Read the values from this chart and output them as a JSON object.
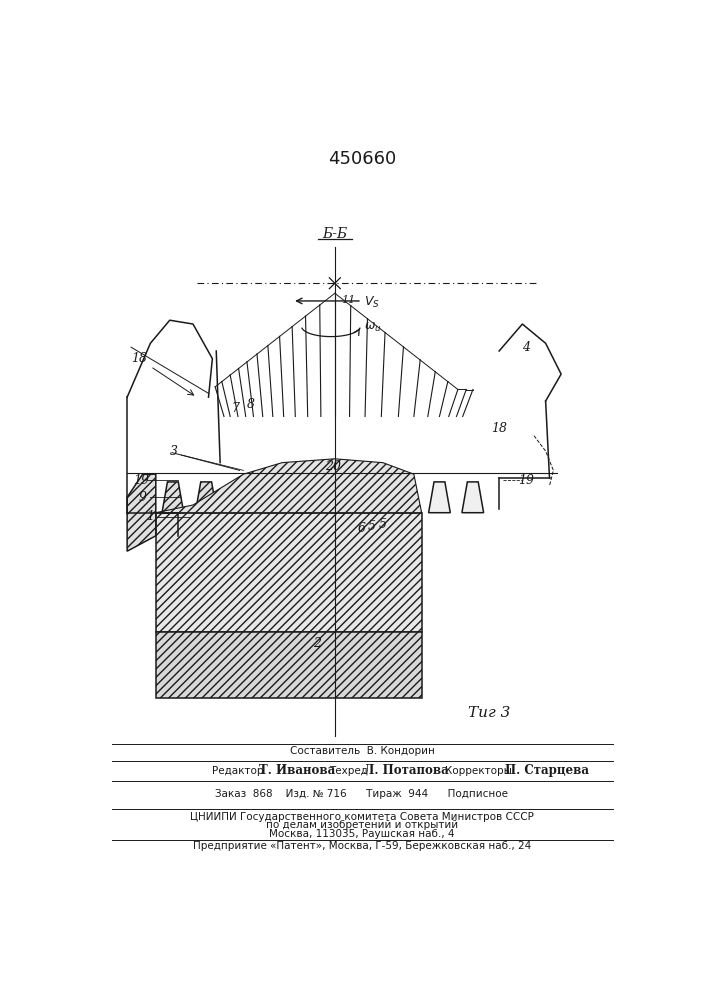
{
  "title": "450660",
  "fig_label": "Τиг 3",
  "background_color": "#ffffff",
  "line_color": "#1a1a1a",
  "footer": {
    "line1": "Составитель  В. Кондорин",
    "line2_a": "Редактор",
    "line2_b": "Т. Иванова",
    "line2_c": "  Техред",
    "line2_d": "  Л. Потапова",
    "line2_e": "  Корректоры:",
    "line2_f": "  П. Старцева",
    "line3": "Заказ  868    Изд. № 716      Тираж  944      Подписное",
    "line4": "ЦНИИПИ Государственного комитета Совета Министров СССР",
    "line5": "по делам изобретений и открытий",
    "line6": "Москва, 113035, Раушская наб., 4",
    "line7": "Предприятие «Патент», Москва, Г-59, Бережковская наб., 24"
  }
}
